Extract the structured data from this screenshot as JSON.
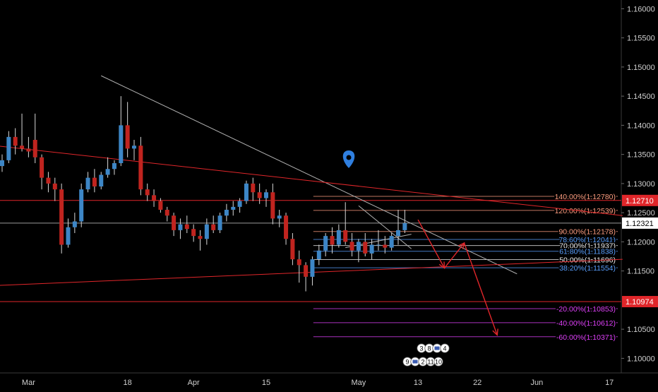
{
  "colors": {
    "background": "#000000",
    "up_candle": "#3d86c6",
    "down_candle": "#c0241f",
    "wick": "#d8d8d8",
    "grid": "#2a2a2a",
    "red_line": "#e0262a",
    "trend_line": "#b0b0b0",
    "fib_orange": "#ff9e80",
    "fib_blue": "#5aa0ff",
    "fib_white": "#f0f0f0",
    "fib_magenta": "#e040fb",
    "arrow": "#e0262a",
    "current_price_bg": "#ffffff",
    "red_label_bg": "#e0262a"
  },
  "chart_data": {
    "type": "candlestick",
    "title": "",
    "xlabel": "",
    "ylabel": "",
    "ylim": [
      1.0975,
      1.1615
    ],
    "y_scale": "linear",
    "grid": false,
    "price_ticks": [
      {
        "value": 1.16,
        "label": "1.16000"
      },
      {
        "value": 1.155,
        "label": "1.15500"
      },
      {
        "value": 1.15,
        "label": "1.15000"
      },
      {
        "value": 1.145,
        "label": "1.14500"
      },
      {
        "value": 1.14,
        "label": "1.14000"
      },
      {
        "value": 1.135,
        "label": "1.13500"
      },
      {
        "value": 1.13,
        "label": "1.13000"
      },
      {
        "value": 1.125,
        "label": "1.12500"
      },
      {
        "value": 1.12,
        "label": "1.12000"
      },
      {
        "value": 1.115,
        "label": "1.11500"
      },
      {
        "value": 1.105,
        "label": "1.10500"
      },
      {
        "value": 1.1,
        "label": "1.10000"
      }
    ],
    "time_ticks": [
      {
        "index": 4,
        "label": "Mar"
      },
      {
        "index": 19,
        "label": "18"
      },
      {
        "index": 29,
        "label": "Apr"
      },
      {
        "index": 40,
        "label": "15"
      },
      {
        "index": 54,
        "label": "May"
      },
      {
        "index": 63,
        "label": "13"
      },
      {
        "index": 72,
        "label": "22"
      },
      {
        "index": 81,
        "label": "Jun"
      },
      {
        "index": 92,
        "label": "17"
      }
    ],
    "candles": [
      {
        "o": 1.133,
        "h": 1.135,
        "l": 1.132,
        "c": 1.134
      },
      {
        "o": 1.134,
        "h": 1.139,
        "l": 1.1335,
        "c": 1.138
      },
      {
        "o": 1.138,
        "h": 1.1395,
        "l": 1.135,
        "c": 1.1365
      },
      {
        "o": 1.1365,
        "h": 1.142,
        "l": 1.1355,
        "c": 1.136
      },
      {
        "o": 1.136,
        "h": 1.138,
        "l": 1.1345,
        "c": 1.1355
      },
      {
        "o": 1.1375,
        "h": 1.142,
        "l": 1.1335,
        "c": 1.1345
      },
      {
        "o": 1.1345,
        "h": 1.135,
        "l": 1.129,
        "c": 1.131
      },
      {
        "o": 1.131,
        "h": 1.132,
        "l": 1.1285,
        "c": 1.13
      },
      {
        "o": 1.13,
        "h": 1.131,
        "l": 1.127,
        "c": 1.129
      },
      {
        "o": 1.129,
        "h": 1.13,
        "l": 1.118,
        "c": 1.1195
      },
      {
        "o": 1.1195,
        "h": 1.124,
        "l": 1.119,
        "c": 1.1225
      },
      {
        "o": 1.1225,
        "h": 1.125,
        "l": 1.1215,
        "c": 1.1235
      },
      {
        "o": 1.1235,
        "h": 1.13,
        "l": 1.1225,
        "c": 1.129
      },
      {
        "o": 1.129,
        "h": 1.132,
        "l": 1.1285,
        "c": 1.131
      },
      {
        "o": 1.131,
        "h": 1.1325,
        "l": 1.1285,
        "c": 1.1295
      },
      {
        "o": 1.1295,
        "h": 1.132,
        "l": 1.129,
        "c": 1.1315
      },
      {
        "o": 1.1315,
        "h": 1.1345,
        "l": 1.131,
        "c": 1.1325
      },
      {
        "o": 1.1325,
        "h": 1.134,
        "l": 1.1315,
        "c": 1.1335
      },
      {
        "o": 1.1335,
        "h": 1.145,
        "l": 1.133,
        "c": 1.14
      },
      {
        "o": 1.14,
        "h": 1.144,
        "l": 1.1345,
        "c": 1.136
      },
      {
        "o": 1.136,
        "h": 1.1375,
        "l": 1.134,
        "c": 1.1365
      },
      {
        "o": 1.1365,
        "h": 1.138,
        "l": 1.128,
        "c": 1.129
      },
      {
        "o": 1.129,
        "h": 1.13,
        "l": 1.127,
        "c": 1.128
      },
      {
        "o": 1.128,
        "h": 1.129,
        "l": 1.126,
        "c": 1.127
      },
      {
        "o": 1.127,
        "h": 1.1275,
        "l": 1.125,
        "c": 1.1255
      },
      {
        "o": 1.1255,
        "h": 1.126,
        "l": 1.1235,
        "c": 1.1245
      },
      {
        "o": 1.1245,
        "h": 1.125,
        "l": 1.121,
        "c": 1.122
      },
      {
        "o": 1.122,
        "h": 1.124,
        "l": 1.1205,
        "c": 1.123
      },
      {
        "o": 1.123,
        "h": 1.1245,
        "l": 1.1215,
        "c": 1.1222
      },
      {
        "o": 1.1222,
        "h": 1.123,
        "l": 1.12,
        "c": 1.121
      },
      {
        "o": 1.121,
        "h": 1.122,
        "l": 1.1185,
        "c": 1.1205
      },
      {
        "o": 1.1205,
        "h": 1.124,
        "l": 1.1195,
        "c": 1.123
      },
      {
        "o": 1.123,
        "h": 1.1245,
        "l": 1.1215,
        "c": 1.122
      },
      {
        "o": 1.122,
        "h": 1.125,
        "l": 1.1215,
        "c": 1.1245
      },
      {
        "o": 1.1245,
        "h": 1.1265,
        "l": 1.1235,
        "c": 1.1255
      },
      {
        "o": 1.1255,
        "h": 1.127,
        "l": 1.1245,
        "c": 1.126
      },
      {
        "o": 1.126,
        "h": 1.1275,
        "l": 1.125,
        "c": 1.127
      },
      {
        "o": 1.127,
        "h": 1.1305,
        "l": 1.1265,
        "c": 1.13
      },
      {
        "o": 1.13,
        "h": 1.131,
        "l": 1.127,
        "c": 1.1285
      },
      {
        "o": 1.1285,
        "h": 1.13,
        "l": 1.1265,
        "c": 1.1275
      },
      {
        "o": 1.1275,
        "h": 1.129,
        "l": 1.126,
        "c": 1.1285
      },
      {
        "o": 1.1285,
        "h": 1.13,
        "l": 1.123,
        "c": 1.124
      },
      {
        "o": 1.124,
        "h": 1.1255,
        "l": 1.1225,
        "c": 1.1245
      },
      {
        "o": 1.1245,
        "h": 1.125,
        "l": 1.1195,
        "c": 1.1205
      },
      {
        "o": 1.1205,
        "h": 1.1215,
        "l": 1.116,
        "c": 1.117
      },
      {
        "o": 1.117,
        "h": 1.1185,
        "l": 1.113,
        "c": 1.116
      },
      {
        "o": 1.116,
        "h": 1.1165,
        "l": 1.1115,
        "c": 1.114
      },
      {
        "o": 1.114,
        "h": 1.1175,
        "l": 1.1125,
        "c": 1.117
      },
      {
        "o": 1.117,
        "h": 1.1195,
        "l": 1.116,
        "c": 1.1185
      },
      {
        "o": 1.1185,
        "h": 1.1215,
        "l": 1.1175,
        "c": 1.121
      },
      {
        "o": 1.121,
        "h": 1.1225,
        "l": 1.118,
        "c": 1.1195
      },
      {
        "o": 1.1195,
        "h": 1.123,
        "l": 1.119,
        "c": 1.122
      },
      {
        "o": 1.122,
        "h": 1.1268,
        "l": 1.1195,
        "c": 1.12
      },
      {
        "o": 1.12,
        "h": 1.1215,
        "l": 1.1175,
        "c": 1.1185
      },
      {
        "o": 1.1185,
        "h": 1.1205,
        "l": 1.1165,
        "c": 1.12
      },
      {
        "o": 1.12,
        "h": 1.1215,
        "l": 1.1175,
        "c": 1.118
      },
      {
        "o": 1.118,
        "h": 1.1205,
        "l": 1.117,
        "c": 1.1195
      },
      {
        "o": 1.1195,
        "h": 1.122,
        "l": 1.1185,
        "c": 1.1195
      },
      {
        "o": 1.1195,
        "h": 1.121,
        "l": 1.118,
        "c": 1.119
      },
      {
        "o": 1.119,
        "h": 1.1215,
        "l": 1.1185,
        "c": 1.121
      },
      {
        "o": 1.121,
        "h": 1.1255,
        "l": 1.1195,
        "c": 1.122
      },
      {
        "o": 1.122,
        "h": 1.1255,
        "l": 1.1215,
        "c": 1.1232
      }
    ],
    "horizontal_lines": [
      {
        "price": 1.1271,
        "label": "1.12710",
        "style": "red"
      },
      {
        "price": 1.10974,
        "label": "1.10974",
        "style": "red"
      },
      {
        "price": 1.12321,
        "label": "1.12321",
        "style": "current"
      }
    ],
    "fib_levels": [
      {
        "price": 1.1278,
        "label": "140.00%(1.12780)",
        "color": "orange"
      },
      {
        "price": 1.12539,
        "label": "120.00%(1.12539)",
        "color": "orange"
      },
      {
        "price": 1.12178,
        "label": "90.00%(1.12178)",
        "color": "orange"
      },
      {
        "price": 1.12041,
        "label": "78.60%(1.12041)",
        "color": "blue"
      },
      {
        "price": 1.11937,
        "label": "70.00%(1.11937)",
        "color": "white"
      },
      {
        "price": 1.11838,
        "label": "61.80%(1.11838)",
        "color": "blue"
      },
      {
        "price": 1.11696,
        "label": "50.00%(1.11696)",
        "color": "white"
      },
      {
        "price": 1.11554,
        "label": "38.20%(1.11554)",
        "color": "blue"
      },
      {
        "price": 1.10853,
        "label": "-20.00%(1.10853)",
        "color": "magenta"
      },
      {
        "price": 1.10612,
        "label": "-40.00%(1.10612)",
        "color": "magenta"
      },
      {
        "price": 1.10371,
        "label": "-60.00%(1.10371)",
        "color": "magenta"
      }
    ],
    "fib_start_index": 48,
    "trend_lines": [
      {
        "from": {
          "i": 15,
          "p": 1.1485
        },
        "to": {
          "i": 78,
          "p": 1.1145
        },
        "color": "gray"
      },
      {
        "from": {
          "i": -1,
          "p": 1.1365
        },
        "to": {
          "i": 94,
          "p": 1.1245
        },
        "color": "red"
      },
      {
        "from": {
          "i": -1,
          "p": 1.1125
        },
        "to": {
          "i": 94,
          "p": 1.117
        },
        "color": "red"
      },
      {
        "from": {
          "i": 54,
          "p": 1.1262
        },
        "to": {
          "i": 62,
          "p": 1.1188
        },
        "color": "gray"
      },
      {
        "from": {
          "i": 52,
          "p": 1.119
        },
        "to": {
          "i": 62,
          "p": 1.1213
        },
        "color": "gray"
      }
    ],
    "projection_path": [
      {
        "i": 63,
        "p": 1.1238
      },
      {
        "i": 67,
        "p": 1.1155
      },
      {
        "i": 70,
        "p": 1.1198
      },
      {
        "i": 75,
        "p": 1.104
      }
    ],
    "event_icons": {
      "row1": [
        "3",
        "8",
        "",
        "4"
      ],
      "row2": [
        "9",
        "",
        "2",
        "11",
        "10"
      ]
    },
    "marker_icon": "location-pin-icon"
  }
}
